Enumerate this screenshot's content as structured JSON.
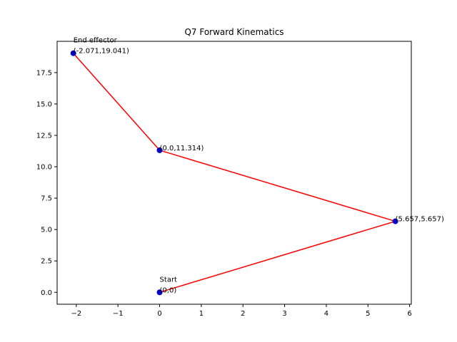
{
  "chart_data": {
    "type": "line",
    "title": "Q7 Forward Kinematics",
    "xlabel": "",
    "ylabel": "",
    "xlim": [
      -2.46,
      6.04
    ],
    "ylim": [
      -0.95,
      19.99
    ],
    "xticks": [
      -2,
      -1,
      0,
      1,
      2,
      3,
      4,
      5,
      6
    ],
    "xtick_labels": [
      "−2",
      "−1",
      "0",
      "1",
      "2",
      "3",
      "4",
      "5",
      "6"
    ],
    "yticks": [
      0.0,
      2.5,
      5.0,
      7.5,
      10.0,
      12.5,
      15.0,
      17.5
    ],
    "ytick_labels": [
      "0.0",
      "2.5",
      "5.0",
      "7.5",
      "10.0",
      "12.5",
      "15.0",
      "17.5"
    ],
    "grid": false,
    "series": [
      {
        "line_color": "#ff0000",
        "marker_color": "#0000cc",
        "points": [
          {
            "x": 0,
            "y": 0,
            "labels": [
              "Start",
              "(0,0)"
            ]
          },
          {
            "x": 5.657,
            "y": 5.657,
            "labels": [
              "(5.657,5.657)"
            ]
          },
          {
            "x": 0.0,
            "y": 11.314,
            "labels": [
              "(0.0,11.314)"
            ]
          },
          {
            "x": -2.071,
            "y": 19.041,
            "labels": [
              "End effector",
              "(-2.071,19.041)"
            ]
          }
        ]
      }
    ]
  }
}
